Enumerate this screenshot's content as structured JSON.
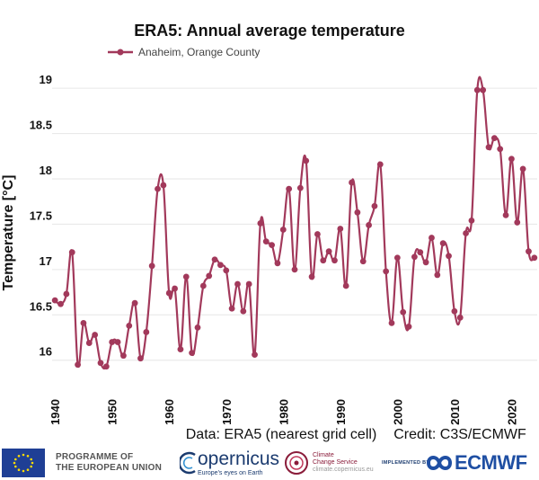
{
  "chart_data": {
    "type": "line",
    "title": "ERA5: Annual average temperature",
    "ylabel": "Temperature [°C]",
    "xlabel": "",
    "ylim": [
      15.65,
      19.2
    ],
    "xlim": [
      1939.5,
      2024.5
    ],
    "yticks": [
      16,
      16.5,
      17,
      17.5,
      18,
      18.5,
      19
    ],
    "ytick_labels": [
      "16",
      "16.5",
      "17",
      "17.5",
      "18",
      "18.5",
      "19"
    ],
    "xticks": [
      1940,
      1950,
      1960,
      1970,
      1980,
      1990,
      2000,
      2010,
      2020
    ],
    "xtick_labels": [
      "1940",
      "1950",
      "1960",
      "1970",
      "1980",
      "1990",
      "2000",
      "2010",
      "2020"
    ],
    "grid": true,
    "legend_position": "top-left",
    "series": [
      {
        "name": "Anaheim, Orange County",
        "color": "#a2395b",
        "x": [
          1940,
          1941,
          1942,
          1943,
          1944,
          1945,
          1946,
          1947,
          1948,
          1949,
          1950,
          1951,
          1952,
          1953,
          1954,
          1955,
          1956,
          1957,
          1958,
          1959,
          1960,
          1961,
          1962,
          1963,
          1964,
          1965,
          1966,
          1967,
          1968,
          1969,
          1970,
          1971,
          1972,
          1973,
          1974,
          1975,
          1976,
          1977,
          1978,
          1979,
          1980,
          1981,
          1982,
          1983,
          1984,
          1985,
          1986,
          1987,
          1988,
          1989,
          1990,
          1991,
          1992,
          1993,
          1994,
          1995,
          1996,
          1997,
          1998,
          1999,
          2000,
          2001,
          2002,
          2003,
          2004,
          2005,
          2006,
          2007,
          2008,
          2009,
          2010,
          2011,
          2012,
          2013,
          2014,
          2015,
          2016,
          2017,
          2018,
          2019,
          2020,
          2021,
          2022,
          2023,
          2024
        ],
        "values": [
          16.66,
          16.62,
          16.73,
          17.19,
          15.95,
          16.41,
          16.19,
          16.28,
          15.97,
          15.93,
          16.2,
          16.2,
          16.05,
          16.38,
          16.63,
          16.02,
          16.31,
          17.04,
          17.89,
          17.93,
          16.74,
          16.79,
          16.12,
          16.92,
          16.08,
          16.36,
          16.82,
          16.93,
          17.11,
          17.05,
          16.99,
          16.57,
          16.84,
          16.54,
          16.84,
          16.06,
          17.51,
          17.31,
          17.27,
          17.07,
          17.44,
          17.89,
          17.0,
          17.9,
          18.2,
          16.92,
          17.39,
          17.1,
          17.2,
          17.1,
          17.45,
          16.82,
          17.96,
          17.63,
          17.09,
          17.49,
          17.7,
          18.16,
          16.98,
          16.41,
          17.13,
          16.53,
          16.37,
          17.14,
          17.19,
          17.08,
          17.35,
          16.94,
          17.29,
          17.15,
          16.54,
          16.47,
          17.4,
          17.54,
          18.98,
          18.98,
          18.35,
          18.45,
          18.33,
          17.6,
          18.22,
          17.52,
          18.11,
          17.2,
          17.13
        ]
      }
    ]
  },
  "caption": {
    "data_source": "Data: ERA5 (nearest grid cell)",
    "credit": "Credit: C3S/ECMWF"
  },
  "footer": {
    "eu_line1": "PROGRAMME OF",
    "eu_line2": "THE EUROPEAN UNION",
    "copernicus": "opernicus",
    "copernicus_sub": "Europe's eyes on Earth",
    "c3s_line1": "Climate",
    "c3s_line2": "Change Service",
    "c3s_url": "climate.copernicus.eu",
    "implemented_by": "IMPLEMENTED BY",
    "ecmwf": "ECMWF"
  }
}
